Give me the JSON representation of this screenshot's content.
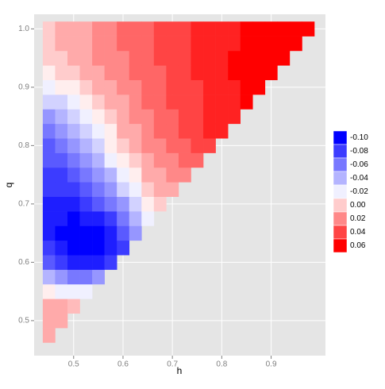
{
  "chart_data": {
    "type": "heatmap",
    "x_label": "h",
    "y_label": "q",
    "xlim": [
      0.42,
      1.01
    ],
    "ylim": [
      0.44,
      1.025
    ],
    "xticks": [
      0.5,
      0.6,
      0.7,
      0.8,
      0.9
    ],
    "yticks": [
      0.5,
      0.6,
      0.7,
      0.8,
      0.9,
      {
        "value": 1,
        "label": "1.0"
      }
    ],
    "grid": true,
    "tile_width": 0.025,
    "tile_height": 0.025,
    "color_scale": {
      "low": "#0000ff",
      "mid": "#ffffff",
      "high": "#ff0000",
      "limits": [
        -0.1,
        0.06
      ],
      "midpoint": -0.015
    },
    "legend": {
      "position": "right",
      "breaks": [
        {
          "value": -0.1,
          "label": "-0.10"
        },
        {
          "value": -0.08,
          "label": "-0.08"
        },
        {
          "value": -0.06,
          "label": "-0.06"
        },
        {
          "value": -0.04,
          "label": "-0.04"
        },
        {
          "value": -0.02,
          "label": "-0.02"
        },
        {
          "value": 0,
          "label": "0.00"
        },
        {
          "value": 0.02,
          "label": "0.02"
        },
        {
          "value": 0.04,
          "label": "0.04"
        },
        {
          "value": 0.06,
          "label": "0.06"
        }
      ]
    },
    "x": [
      0.45,
      0.475,
      0.5,
      0.525,
      0.55,
      0.575,
      0.6,
      0.625,
      0.65,
      0.675,
      0.7,
      0.725,
      0.75,
      0.775,
      0.8,
      0.825,
      0.85,
      0.875,
      0.9,
      0.925,
      0.95,
      0.975
    ],
    "y": [
      0.475,
      0.5,
      0.525,
      0.55,
      0.575,
      0.6,
      0.625,
      0.65,
      0.675,
      0.7,
      0.725,
      0.75,
      0.775,
      0.8,
      0.825,
      0.85,
      0.875,
      0.9,
      0.925,
      0.95,
      0.975,
      1
    ],
    "z": [
      [
        0.01,
        null,
        null,
        null,
        null,
        null,
        null,
        null,
        null,
        null,
        null,
        null,
        null,
        null,
        null,
        null,
        null,
        null,
        null,
        null,
        null,
        null
      ],
      [
        0.01,
        0.01,
        null,
        null,
        null,
        null,
        null,
        null,
        null,
        null,
        null,
        null,
        null,
        null,
        null,
        null,
        null,
        null,
        null,
        null,
        null,
        null
      ],
      [
        0.01,
        0.01,
        0.005,
        null,
        null,
        null,
        null,
        null,
        null,
        null,
        null,
        null,
        null,
        null,
        null,
        null,
        null,
        null,
        null,
        null,
        null,
        null
      ],
      [
        -0.01,
        -0.02,
        -0.02,
        -0.02,
        null,
        null,
        null,
        null,
        null,
        null,
        null,
        null,
        null,
        null,
        null,
        null,
        null,
        null,
        null,
        null,
        null,
        null
      ],
      [
        -0.04,
        -0.05,
        -0.06,
        -0.06,
        -0.05,
        null,
        null,
        null,
        null,
        null,
        null,
        null,
        null,
        null,
        null,
        null,
        null,
        null,
        null,
        null,
        null,
        null
      ],
      [
        -0.07,
        -0.08,
        -0.09,
        -0.09,
        -0.09,
        -0.08,
        null,
        null,
        null,
        null,
        null,
        null,
        null,
        null,
        null,
        null,
        null,
        null,
        null,
        null,
        null,
        null
      ],
      [
        -0.08,
        -0.09,
        -0.1,
        -0.1,
        -0.1,
        -0.09,
        -0.08,
        null,
        null,
        null,
        null,
        null,
        null,
        null,
        null,
        null,
        null,
        null,
        null,
        null,
        null,
        null
      ],
      [
        -0.09,
        -0.1,
        -0.1,
        -0.1,
        -0.1,
        -0.09,
        -0.07,
        -0.05,
        null,
        null,
        null,
        null,
        null,
        null,
        null,
        null,
        null,
        null,
        null,
        null,
        null,
        null
      ],
      [
        -0.09,
        -0.09,
        -0.1,
        -0.09,
        -0.09,
        -0.08,
        -0.06,
        -0.04,
        -0.02,
        null,
        null,
        null,
        null,
        null,
        null,
        null,
        null,
        null,
        null,
        null,
        null,
        null
      ],
      [
        -0.09,
        -0.09,
        -0.09,
        -0.08,
        -0.07,
        -0.06,
        -0.05,
        -0.03,
        -0.01,
        0,
        null,
        null,
        null,
        null,
        null,
        null,
        null,
        null,
        null,
        null,
        null,
        null
      ],
      [
        -0.08,
        -0.08,
        -0.08,
        -0.07,
        -0.06,
        -0.05,
        -0.03,
        -0.02,
        0,
        0.01,
        0.01,
        null,
        null,
        null,
        null,
        null,
        null,
        null,
        null,
        null,
        null,
        null
      ],
      [
        -0.08,
        -0.08,
        -0.07,
        -0.06,
        -0.05,
        -0.04,
        -0.02,
        -0.01,
        0.01,
        0.01,
        0.02,
        0.02,
        null,
        null,
        null,
        null,
        null,
        null,
        null,
        null,
        null,
        null
      ],
      [
        -0.07,
        -0.07,
        -0.06,
        -0.05,
        -0.04,
        -0.02,
        -0.01,
        0,
        0.01,
        0.02,
        0.02,
        0.03,
        0.03,
        null,
        null,
        null,
        null,
        null,
        null,
        null,
        null,
        null
      ],
      [
        -0.07,
        -0.06,
        -0.05,
        -0.04,
        -0.03,
        -0.01,
        0,
        0.01,
        0.02,
        0.02,
        0.03,
        0.03,
        0.04,
        0.04,
        null,
        null,
        null,
        null,
        null,
        null,
        null,
        null
      ],
      [
        -0.06,
        -0.05,
        -0.04,
        -0.03,
        -0.02,
        -0.01,
        0.01,
        0.01,
        0.02,
        0.03,
        0.03,
        0.04,
        0.04,
        0.05,
        0.05,
        null,
        null,
        null,
        null,
        null,
        null,
        null
      ],
      [
        -0.05,
        -0.04,
        -0.03,
        -0.02,
        -0.01,
        0,
        0.01,
        0.02,
        0.02,
        0.03,
        0.03,
        0.04,
        0.04,
        0.05,
        0.05,
        0.05,
        null,
        null,
        null,
        null,
        null,
        null
      ],
      [
        -0.03,
        -0.03,
        -0.02,
        -0.01,
        0,
        0.01,
        0.01,
        0.02,
        0.03,
        0.03,
        0.04,
        0.04,
        0.04,
        0.05,
        0.05,
        0.05,
        0.06,
        null,
        null,
        null,
        null,
        null
      ],
      [
        -0.02,
        -0.01,
        -0.01,
        0,
        0.01,
        0.01,
        0.02,
        0.02,
        0.03,
        0.03,
        0.04,
        0.04,
        0.04,
        0.05,
        0.05,
        0.05,
        0.06,
        0.06,
        null,
        null,
        null,
        null
      ],
      [
        -0.01,
        0,
        0,
        0.01,
        0.01,
        0.02,
        0.02,
        0.03,
        0.03,
        0.03,
        0.04,
        0.04,
        0.05,
        0.05,
        0.05,
        0.06,
        0.06,
        0.06,
        0.06,
        null,
        null,
        null
      ],
      [
        0,
        0,
        0.01,
        0.01,
        0.02,
        0.02,
        0.02,
        0.03,
        0.03,
        0.04,
        0.04,
        0.04,
        0.05,
        0.05,
        0.05,
        0.06,
        0.06,
        0.06,
        0.06,
        0.06,
        null,
        null
      ],
      [
        0,
        0.01,
        0.01,
        0.01,
        0.02,
        0.02,
        0.03,
        0.03,
        0.03,
        0.04,
        0.04,
        0.04,
        0.05,
        0.05,
        0.05,
        0.05,
        0.06,
        0.06,
        0.06,
        0.06,
        0.06,
        null
      ],
      [
        0,
        0.01,
        0.01,
        0.01,
        0.02,
        0.02,
        0.03,
        0.03,
        0.03,
        0.04,
        0.04,
        0.04,
        0.05,
        0.05,
        0.05,
        0.05,
        0.06,
        0.06,
        0.06,
        0.06,
        0.06,
        0.06
      ]
    ]
  }
}
